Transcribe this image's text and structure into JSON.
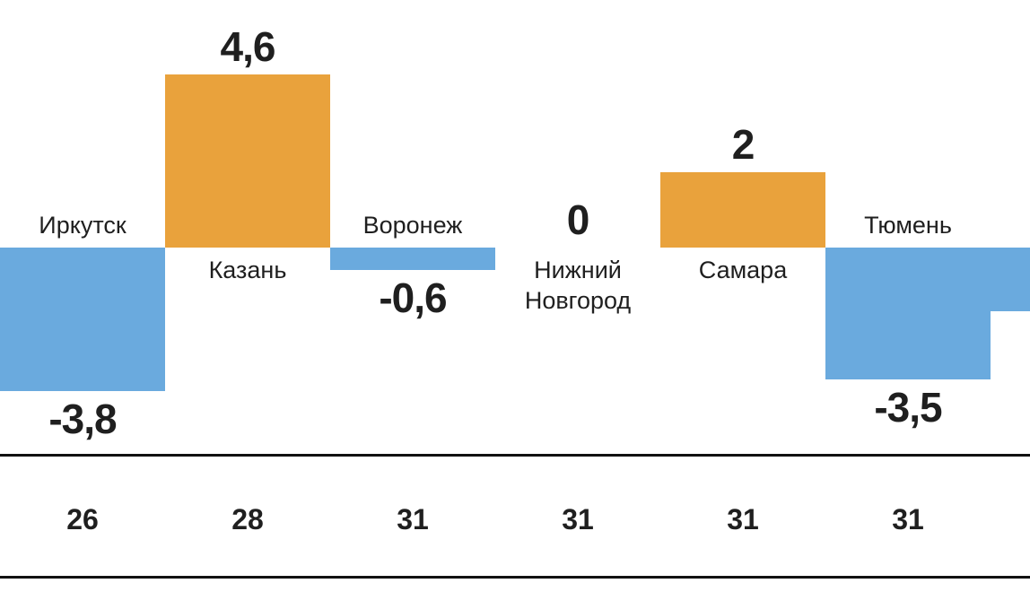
{
  "chart_data": {
    "type": "bar",
    "categories": [
      "Иркутск",
      "Казань",
      "Воронеж",
      "Нижний Новгород",
      "Самара",
      "Тюмень"
    ],
    "series": [
      {
        "city": "Иркутск",
        "value": -3.8,
        "value_label": "-3,8"
      },
      {
        "city": "Казань",
        "value": 4.6,
        "value_label": "4,6"
      },
      {
        "city": "Воронеж",
        "value": -0.6,
        "value_label": "-0,6"
      },
      {
        "city": "Нижний Новгород",
        "value": 0,
        "value_label": "0"
      },
      {
        "city": "Самара",
        "value": 2,
        "value_label": "2"
      },
      {
        "city": "Тюмень",
        "value": -3.5,
        "value_label": "-3,5"
      }
    ],
    "bottom_row": [
      "26",
      "28",
      "31",
      "31",
      "31",
      "31"
    ],
    "partial_next_bar": {
      "present": true,
      "estimated_value": -1.7
    },
    "colors": {
      "positive": "#e9a23c",
      "negative": "#6aaade",
      "text": "#1f1f1f",
      "rule": "#111111"
    },
    "axis": {
      "baseline": 0,
      "grid": false,
      "legend": false,
      "value_range": [
        -3.8,
        4.6
      ]
    }
  }
}
